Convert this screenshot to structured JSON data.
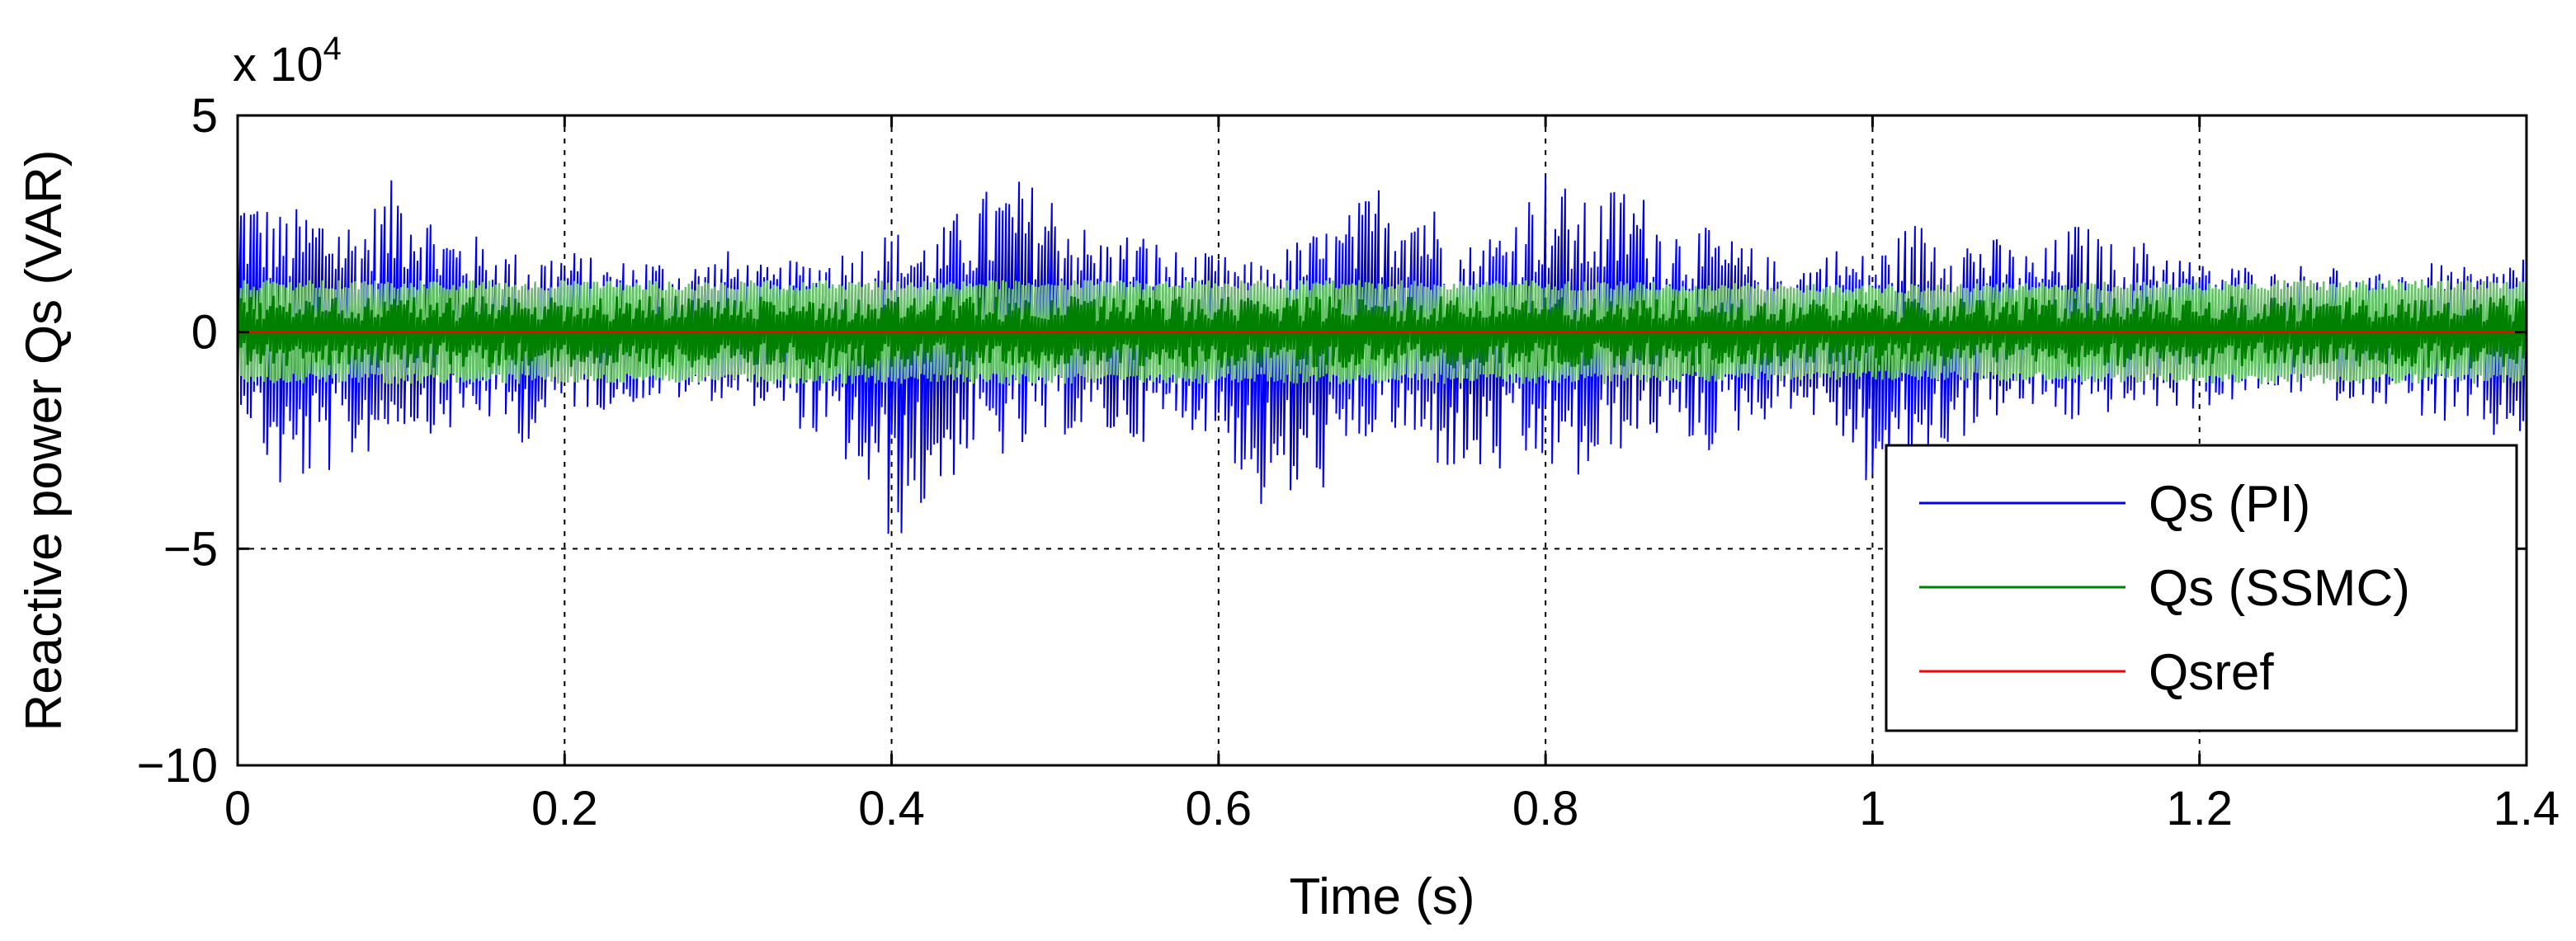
{
  "chart_data": {
    "type": "line",
    "xlabel": "Time (s)",
    "ylabel": "Reactive power Qs (VAR)",
    "y_multiplier_base": "x 10",
    "y_multiplier_exponent": "4",
    "xlim": [
      0,
      1.4
    ],
    "ylim": [
      -10,
      5
    ],
    "x_ticks": [
      0,
      0.2,
      0.4,
      0.6,
      0.8,
      1,
      1.2,
      1.4
    ],
    "x_tick_labels": [
      "0",
      "0.2",
      "0.4",
      "0.6",
      "0.8",
      "1",
      "1.2",
      "1.4"
    ],
    "y_ticks": [
      5,
      0,
      -5,
      -10
    ],
    "y_tick_labels": [
      "5",
      "0",
      "−5",
      "−10"
    ],
    "grid": true,
    "legend_position": "bottom-right",
    "series": [
      {
        "name": "Qs (PI)",
        "color": "#0000ee",
        "style": "high-frequency oscillation envelope",
        "x": [
          0,
          0.025,
          0.05,
          0.075,
          0.1,
          0.125,
          0.15,
          0.175,
          0.2,
          0.225,
          0.25,
          0.275,
          0.3,
          0.325,
          0.35,
          0.375,
          0.4,
          0.425,
          0.45,
          0.475,
          0.5,
          0.525,
          0.55,
          0.575,
          0.6,
          0.625,
          0.65,
          0.675,
          0.7,
          0.725,
          0.75,
          0.775,
          0.8,
          0.825,
          0.85,
          0.875,
          0.9,
          0.925,
          0.95,
          0.975,
          1.0,
          1.025,
          1.05,
          1.075,
          1.1,
          1.125,
          1.15,
          1.175,
          1.2,
          1.225,
          1.25,
          1.275,
          1.3,
          1.325,
          1.35,
          1.375,
          1.4
        ],
        "upper": [
          3.6,
          2.8,
          3.0,
          2.6,
          3.8,
          2.5,
          2.2,
          1.8,
          2.0,
          1.6,
          1.8,
          1.6,
          1.9,
          1.5,
          1.8,
          2.0,
          2.4,
          2.2,
          3.2,
          3.6,
          3.3,
          2.2,
          2.4,
          1.9,
          1.8,
          1.6,
          2.2,
          2.6,
          3.6,
          3.4,
          2.0,
          2.6,
          3.8,
          3.0,
          3.6,
          2.6,
          2.4,
          2.0,
          1.5,
          2.0,
          1.8,
          2.6,
          2.4,
          2.2,
          1.8,
          2.6,
          2.0,
          2.2,
          1.6,
          1.6,
          1.4,
          1.8,
          1.2,
          1.6,
          1.6,
          1.4,
          2.0
        ],
        "lower": [
          -1.5,
          -3.8,
          -3.4,
          -3.0,
          -2.2,
          -2.4,
          -2.0,
          -2.6,
          -1.8,
          -1.8,
          -1.6,
          -1.6,
          -1.6,
          -1.8,
          -2.4,
          -3.2,
          -5.0,
          -4.0,
          -2.8,
          -3.0,
          -2.4,
          -2.4,
          -2.6,
          -2.2,
          -2.4,
          -4.2,
          -4.0,
          -3.4,
          -2.2,
          -3.0,
          -3.4,
          -3.4,
          -3.2,
          -3.6,
          -2.6,
          -2.4,
          -2.8,
          -2.2,
          -1.8,
          -2.2,
          -3.8,
          -3.0,
          -2.6,
          -2.0,
          -1.8,
          -2.2,
          -1.8,
          -1.8,
          -1.8,
          -1.6,
          -1.4,
          -1.6,
          -1.6,
          -1.8,
          -2.2,
          -2.6,
          -2.4
        ]
      },
      {
        "name": "Qs (SSMC)",
        "color": "#008000",
        "band_color": "#66c266",
        "style": "high-frequency oscillation band",
        "x": [
          0,
          0.2,
          0.4,
          0.6,
          0.8,
          1.0,
          1.2,
          1.4
        ],
        "upper": [
          1.2,
          1.2,
          1.2,
          1.2,
          1.2,
          1.1,
          1.2,
          1.2
        ],
        "lower": [
          -1.2,
          -1.2,
          -1.2,
          -1.2,
          -1.2,
          -1.1,
          -1.2,
          -1.2
        ]
      },
      {
        "name": "Qsref",
        "color": "#ff0000",
        "x": [
          0,
          1.4
        ],
        "values": [
          0,
          0
        ]
      }
    ]
  }
}
